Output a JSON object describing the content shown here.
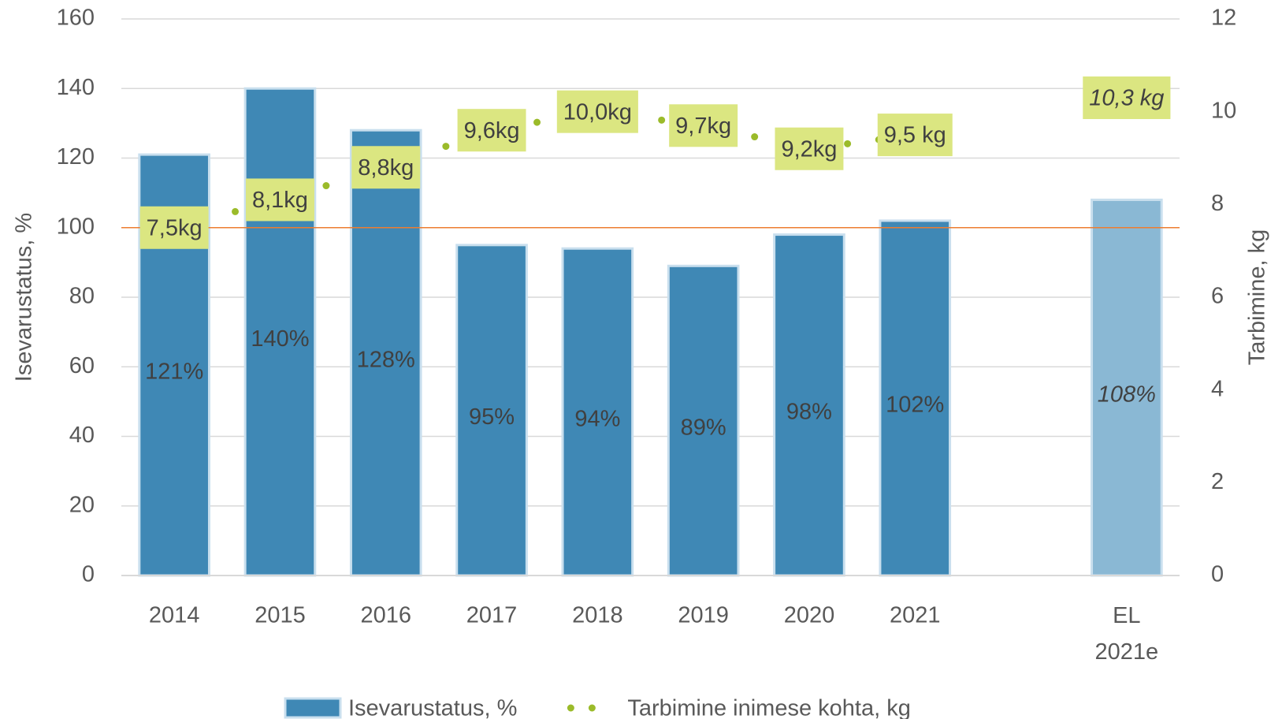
{
  "chart_data": {
    "type": "bar",
    "categories": [
      "2014",
      "2015",
      "2016",
      "2017",
      "2018",
      "2019",
      "2020",
      "2021",
      null,
      "EL 2021e"
    ],
    "series": [
      {
        "name": "Isevarustatus, %",
        "type": "bar",
        "color": "#3f88b5",
        "colors": [
          "#3f88b5",
          "#3f88b5",
          "#3f88b5",
          "#3f88b5",
          "#3f88b5",
          "#3f88b5",
          "#3f88b5",
          "#3f88b5",
          null,
          "#8ab8d4"
        ],
        "values": [
          121,
          140,
          128,
          95,
          94,
          89,
          98,
          102,
          null,
          108
        ],
        "value_labels": [
          "121%",
          "140%",
          "128%",
          "95%",
          "94%",
          "89%",
          "98%",
          "102%",
          null,
          "108%"
        ]
      },
      {
        "name": "Tarbimine inimese kohta, kg",
        "type": "line",
        "axis": "y2",
        "color": "#9bbb2a",
        "label_color": "#dbe681",
        "values": [
          7.5,
          8.1,
          8.8,
          9.6,
          10.0,
          9.7,
          9.2,
          9.5,
          null,
          10.3
        ],
        "value_labels": [
          "7,5kg",
          "8,1kg",
          "8,8kg",
          "9,6kg",
          "10,0kg",
          "9,7kg",
          "9,2kg",
          "9,5 kg",
          null,
          "10,3 kg"
        ]
      }
    ],
    "y_label": "Isevarustatus, %",
    "y2_label": "Tarbimine, kg",
    "ylim": [
      0,
      160
    ],
    "yticks": [
      0,
      20,
      40,
      60,
      80,
      100,
      120,
      140,
      160
    ],
    "y2lim": [
      0,
      12
    ],
    "y2ticks": [
      0,
      2,
      4,
      6,
      8,
      10,
      12
    ],
    "reference_line": 100,
    "reference_color": "#ed7d31",
    "grid": true,
    "legend": "bottom"
  }
}
